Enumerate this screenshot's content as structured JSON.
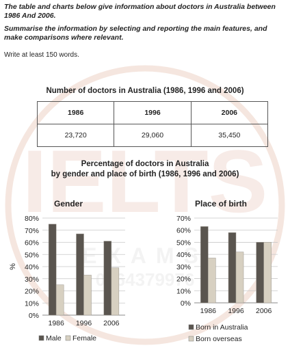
{
  "task": {
    "line1": "The table and charts below give information about doctors in Australia between 1986 And 2006.",
    "line2": "Summarise the information by selecting and reporting the main features, and make comparisons where relevant.",
    "line3": "Write at least 150 words."
  },
  "watermark": {
    "text1": "IELTS",
    "text2": "EXAMS",
    "text3": "0964379976"
  },
  "table": {
    "title": "Number of doctors in Australia (1986, 1996 and 2006)",
    "headers": [
      "1986",
      "1996",
      "2006"
    ],
    "values": [
      "23,720",
      "29,060",
      "35,450"
    ]
  },
  "charts_title_line1": "Percentage of doctors in Australia",
  "charts_title_line2": "by gender and place of birth (1986, 1996 and 2006)",
  "colors": {
    "dark": "#5a554f",
    "light": "#d7d0c1"
  },
  "chart_data": [
    {
      "type": "bar",
      "title": "Gender",
      "categories": [
        "1986",
        "1996",
        "2006"
      ],
      "series": [
        {
          "name": "Male",
          "values": [
            75,
            67,
            61
          ]
        },
        {
          "name": "Female",
          "values": [
            25,
            33,
            39
          ]
        }
      ],
      "ylabel": "%",
      "ylim": [
        0,
        80
      ],
      "yticks": [
        "0%",
        "10%",
        "20%",
        "30%",
        "40%",
        "50%",
        "60%",
        "70%",
        "80%"
      ],
      "grid": true,
      "legend": "bottom"
    },
    {
      "type": "bar",
      "title": "Place of birth",
      "categories": [
        "1986",
        "1996",
        "2006"
      ],
      "series": [
        {
          "name": "Born in Australia",
          "values": [
            63,
            58,
            50
          ]
        },
        {
          "name": "Born overseas",
          "values": [
            37,
            42,
            50
          ]
        }
      ],
      "ylim": [
        0,
        70
      ],
      "yticks": [
        "0%",
        "10%",
        "20%",
        "30%",
        "40%",
        "50%",
        "60%",
        "70%"
      ],
      "grid": true,
      "legend": "bottom"
    }
  ]
}
